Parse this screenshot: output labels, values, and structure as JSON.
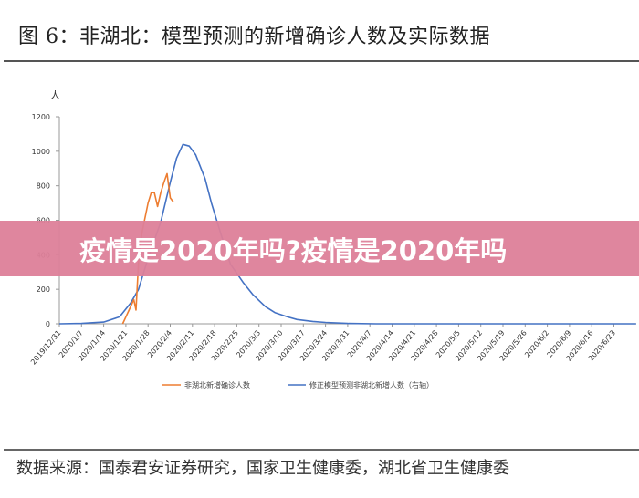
{
  "title": "图 6：非湖北：模型预测的新增确诊人数及实际数据",
  "source": "数据来源：国泰君安证券研究，国家卫生健康委，湖北省卫生健康委",
  "banner": "疫情是2020年吗?疫情是2020年吗",
  "chart_data": {
    "type": "line",
    "title": "",
    "ylabel": "人",
    "ylim": [
      0,
      1200
    ],
    "yticks": [
      "0",
      "200",
      "400",
      "600",
      "800",
      "1000",
      "1200"
    ],
    "x_start": "2019/12/31",
    "x_days_max": 182,
    "xticks": [
      "2019/12/31",
      "2020/1/7",
      "2020/1/14",
      "2020/1/21",
      "2020/1/28",
      "2020/2/4",
      "2020/2/11",
      "2020/2/18",
      "2020/2/25",
      "2020/3/3",
      "2020/3/10",
      "2020/3/17",
      "2020/3/24",
      "2020/3/31",
      "2020/4/7",
      "2020/4/14",
      "2020/4/21",
      "2020/4/28",
      "2020/5/5",
      "2020/5/12",
      "2020/5/19",
      "2020/5/26",
      "2020/6/2",
      "2020/6/9",
      "2020/6/16",
      "2020/6/23"
    ],
    "legend_position": "bottom",
    "series": [
      {
        "name": "非湖北新增确诊人数",
        "color": "#ED7D31",
        "x": [
          20,
          21,
          22,
          23.5,
          24.2,
          25,
          26,
          27,
          28,
          29,
          30,
          31,
          32,
          33,
          34,
          35,
          36
        ],
        "y": [
          0,
          40,
          80,
          140,
          80,
          360,
          520,
          610,
          700,
          760,
          760,
          680,
          760,
          820,
          870,
          730,
          705
        ]
      },
      {
        "name": "修正模型预测非湖北新增人数（右轴）",
        "color": "#4472C4",
        "x": [
          0,
          7,
          14,
          19,
          22.5,
          25,
          28,
          32,
          35,
          37,
          39,
          41,
          43,
          46,
          48,
          51,
          54,
          58,
          61,
          65,
          68,
          72,
          75,
          80,
          84,
          91,
          100,
          120,
          150,
          182
        ],
        "y": [
          0,
          2,
          10,
          40,
          120,
          200,
          380,
          590,
          820,
          960,
          1040,
          1030,
          980,
          840,
          700,
          520,
          345,
          240,
          170,
          100,
          65,
          40,
          25,
          14,
          8,
          2,
          0,
          0,
          0,
          0
        ]
      }
    ]
  }
}
